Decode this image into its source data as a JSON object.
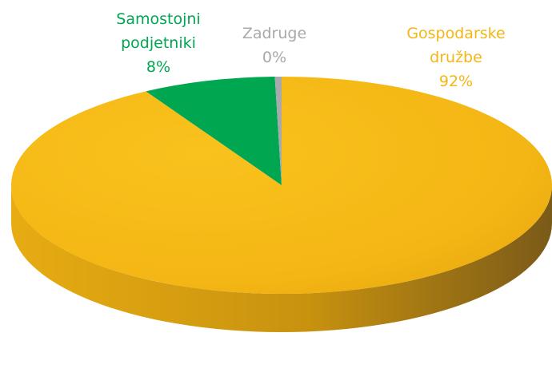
{
  "chart_data": {
    "type": "pie",
    "style": "3d",
    "slices": [
      {
        "name": "Gospodarske družbe",
        "label_lines": [
          "Gospodarske",
          "družbe"
        ],
        "value": 92,
        "percent_label": "92%",
        "color": "#F4B614",
        "side_color": "#C8920F"
      },
      {
        "name": "Samostojni podjetniki",
        "label_lines": [
          "Samostojni",
          "podjetniki"
        ],
        "value": 8,
        "percent_label": "8%",
        "color": "#00A650",
        "side_color": "#007A3A"
      },
      {
        "name": "Zadruge",
        "label_lines": [
          "Zadruge"
        ],
        "value": 0.4,
        "percent_label": "0%",
        "color": "#A7A9AC",
        "side_color": "#808285"
      }
    ],
    "legend": "none",
    "data_labels": "category-and-percent"
  }
}
